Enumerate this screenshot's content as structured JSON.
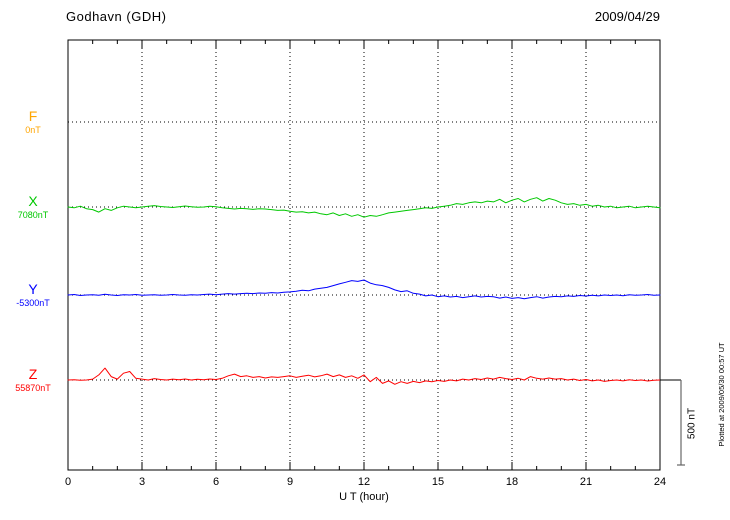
{
  "header": {
    "station": "Godhavn (GDH)",
    "date": "2009/04/29"
  },
  "footer": {
    "xlabel": "U T (hour)",
    "plotted_note": "Plotted at 2009/05/30 00:57 UT"
  },
  "scale_bar": {
    "label": "500 nT",
    "nT": 500
  },
  "chart_data": {
    "type": "line",
    "title": "Godhavn (GDH) magnetogram 2009/04/29",
    "xlabel": "U T (hour)",
    "x_range": [
      0,
      24
    ],
    "x_major_ticks": [
      0,
      3,
      6,
      9,
      12,
      15,
      18,
      21,
      24
    ],
    "x_minor_step": 1,
    "sample_step_hours": 0.25,
    "scale_nT_per_div": 500,
    "grid": "dotted vertical at 3h intervals, dotted horizontal at each component baseline",
    "series": [
      {
        "name": "F",
        "label": "F",
        "baseline_label": "0nT",
        "baseline_nT": 0,
        "color": "#FFA500",
        "values": []
      },
      {
        "name": "X",
        "label": "X",
        "baseline_label": "7080nT",
        "baseline_nT": 7080,
        "color": "#00C800",
        "values": [
          0,
          -5,
          5,
          -10,
          -15,
          -30,
          -10,
          -20,
          -5,
          5,
          0,
          -5,
          0,
          5,
          8,
          3,
          0,
          -3,
          2,
          6,
          2,
          -2,
          0,
          4,
          2,
          -5,
          -8,
          -12,
          -8,
          -10,
          -14,
          -10,
          -12,
          -15,
          -20,
          -18,
          -25,
          -30,
          -28,
          -35,
          -30,
          -40,
          -45,
          -35,
          -50,
          -40,
          -55,
          -45,
          -60,
          -50,
          -55,
          -45,
          -35,
          -30,
          -25,
          -20,
          -15,
          -10,
          -5,
          -8,
          0,
          5,
          10,
          20,
          15,
          25,
          30,
          25,
          35,
          30,
          45,
          25,
          40,
          50,
          30,
          45,
          55,
          35,
          50,
          40,
          25,
          15,
          20,
          10,
          15,
          5,
          10,
          0,
          5,
          -5,
          0,
          5,
          -5,
          0,
          5,
          0,
          -5
        ]
      },
      {
        "name": "Y",
        "label": "Y",
        "baseline_label": "-5300nT",
        "baseline_nT": -5300,
        "color": "#0000FF",
        "values": [
          0,
          3,
          -3,
          0,
          2,
          -2,
          4,
          0,
          -3,
          2,
          0,
          3,
          -2,
          0,
          2,
          -2,
          0,
          3,
          0,
          -2,
          2,
          0,
          3,
          5,
          2,
          5,
          8,
          5,
          8,
          10,
          8,
          12,
          10,
          14,
          12,
          16,
          18,
          22,
          28,
          25,
          35,
          40,
          45,
          55,
          65,
          75,
          85,
          80,
          88,
          70,
          60,
          55,
          45,
          30,
          20,
          25,
          10,
          5,
          -5,
          0,
          -10,
          -5,
          -12,
          -8,
          -15,
          -10,
          -5,
          -12,
          -8,
          -10,
          -18,
          -12,
          -20,
          -15,
          -22,
          -15,
          -10,
          -18,
          -12,
          -8,
          -10,
          -5,
          -8,
          -3,
          -6,
          -2,
          -5,
          0,
          -3,
          0,
          -4,
          2,
          -2,
          0,
          3,
          -2,
          0
        ]
      },
      {
        "name": "Z",
        "label": "Z",
        "baseline_label": "55870nT",
        "baseline_nT": 55870,
        "color": "#FF0000",
        "values": [
          0,
          2,
          -2,
          0,
          5,
          30,
          70,
          20,
          5,
          40,
          50,
          10,
          5,
          0,
          8,
          3,
          0,
          5,
          2,
          6,
          0,
          4,
          2,
          6,
          3,
          10,
          25,
          35,
          20,
          25,
          15,
          20,
          12,
          18,
          15,
          20,
          25,
          15,
          22,
          28,
          18,
          25,
          35,
          20,
          30,
          15,
          25,
          10,
          30,
          -10,
          15,
          -20,
          -5,
          -25,
          -10,
          -20,
          -8,
          -15,
          -5,
          -10,
          -3,
          -8,
          0,
          -5,
          5,
          0,
          8,
          3,
          12,
          5,
          15,
          8,
          3,
          10,
          0,
          20,
          10,
          5,
          12,
          5,
          8,
          0,
          5,
          -3,
          3,
          -5,
          0,
          -8,
          -3,
          0,
          -5,
          2,
          -3,
          0,
          -6,
          -2,
          0
        ]
      }
    ]
  }
}
